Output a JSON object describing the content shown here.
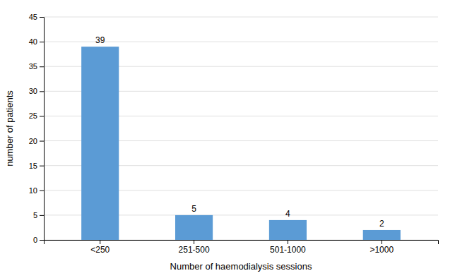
{
  "chart_data": {
    "type": "bar",
    "categories": [
      "<250",
      "251-500",
      "501-1000",
      ">1000"
    ],
    "values": [
      39,
      5,
      4,
      2
    ],
    "color": "#5B9BD5",
    "xlabel": "Number of haemodialysis sessions",
    "ylabel": "number of patients",
    "ylim": [
      0,
      45
    ],
    "yticks": [
      0,
      5,
      10,
      15,
      20,
      25,
      30,
      35,
      40,
      45
    ],
    "grid": true,
    "data_labels": true
  }
}
